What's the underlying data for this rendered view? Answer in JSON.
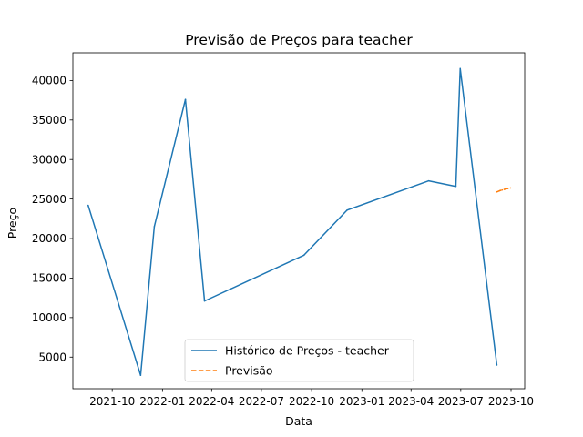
{
  "chart_data": {
    "type": "line",
    "title": "Previsão de Preços para teacher",
    "xlabel": "Data",
    "ylabel": "Preço",
    "xlim": [
      "2021-07-21",
      "2023-10-26"
    ],
    "ylim": [
      1000,
      43500
    ],
    "x_ticks": [
      {
        "date": "2021-10-01",
        "label": "2021-10"
      },
      {
        "date": "2022-01-01",
        "label": "2022-01"
      },
      {
        "date": "2022-04-01",
        "label": "2022-04"
      },
      {
        "date": "2022-07-01",
        "label": "2022-07"
      },
      {
        "date": "2022-10-01",
        "label": "2022-10"
      },
      {
        "date": "2023-01-01",
        "label": "2023-01"
      },
      {
        "date": "2023-04-01",
        "label": "2023-04"
      },
      {
        "date": "2023-07-01",
        "label": "2023-07"
      },
      {
        "date": "2023-10-01",
        "label": "2023-10"
      }
    ],
    "y_ticks": [
      5000,
      10000,
      15000,
      20000,
      25000,
      30000,
      35000,
      40000
    ],
    "grid": false,
    "legend_position": "bottom-center",
    "series": [
      {
        "name": "Histórico de Preços - teacher",
        "color": "#1f77b4",
        "style": "solid",
        "points": [
          {
            "x": "2021-08-18",
            "y": 24200
          },
          {
            "x": "2021-11-22",
            "y": 2700
          },
          {
            "x": "2021-12-17",
            "y": 21500
          },
          {
            "x": "2022-02-12",
            "y": 37600
          },
          {
            "x": "2022-03-19",
            "y": 12100
          },
          {
            "x": "2022-09-17",
            "y": 17900
          },
          {
            "x": "2022-12-05",
            "y": 23600
          },
          {
            "x": "2023-05-03",
            "y": 27300
          },
          {
            "x": "2023-06-22",
            "y": 26600
          },
          {
            "x": "2023-06-30",
            "y": 41500
          },
          {
            "x": "2023-09-05",
            "y": 4000
          }
        ]
      },
      {
        "name": "Previsão",
        "color": "#ff7f0e",
        "style": "dashed",
        "points": [
          {
            "x": "2023-09-05",
            "y": 25900
          },
          {
            "x": "2023-09-10",
            "y": 26050
          },
          {
            "x": "2023-09-15",
            "y": 26150
          },
          {
            "x": "2023-09-20",
            "y": 26250
          },
          {
            "x": "2023-09-25",
            "y": 26330
          },
          {
            "x": "2023-09-30",
            "y": 26400
          }
        ]
      }
    ]
  }
}
